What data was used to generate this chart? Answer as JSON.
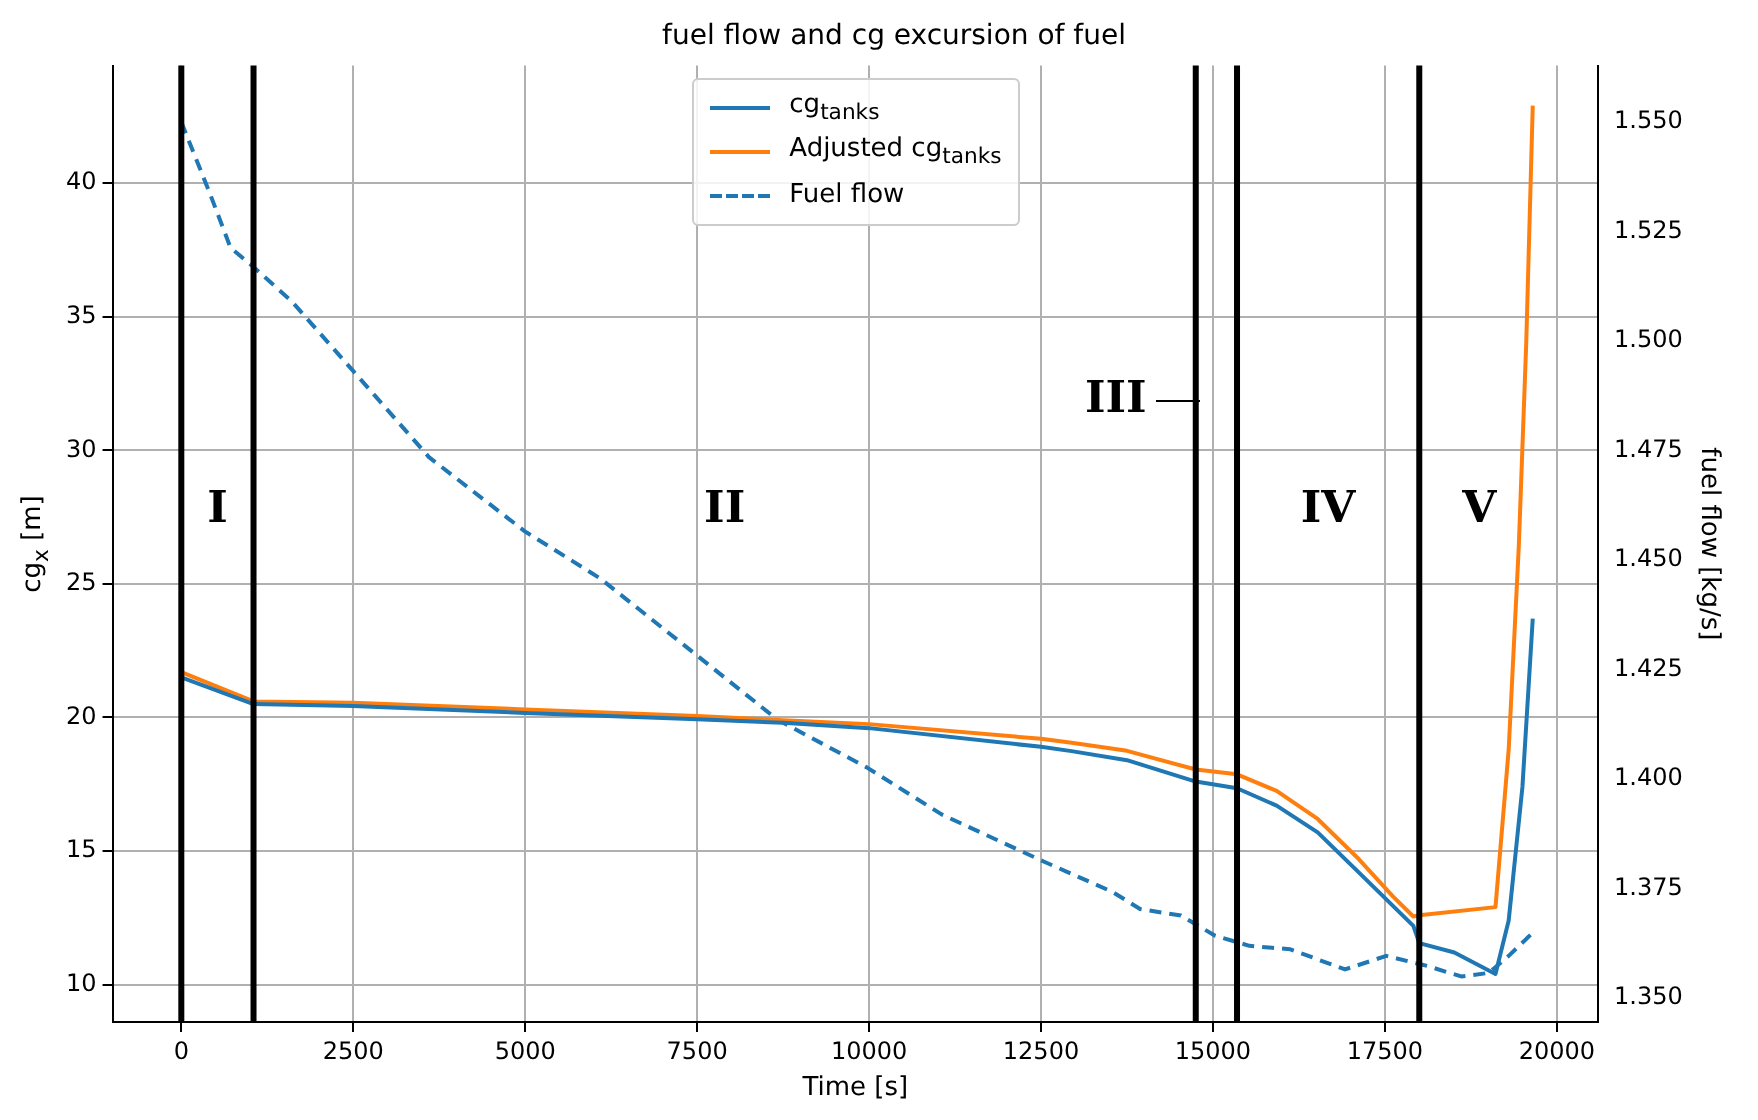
{
  "chart_data": {
    "type": "line",
    "title": "fuel flow and cg excursion of fuel",
    "xlabel": "Time [s]",
    "ylabel": "cg$_{x}$ [m]",
    "y2label": "fuel flow [kg/s]",
    "xlim": [
      -1000,
      20600
    ],
    "xticks": [
      0,
      2500,
      5000,
      7500,
      10000,
      12500,
      15000,
      17500,
      20000
    ],
    "ylim": [
      8.6,
      44.4
    ],
    "yticks": [
      10,
      15,
      20,
      25,
      30,
      35,
      40
    ],
    "y2lim": [
      1.3445,
      1.5629
    ],
    "y2ticks": [
      {
        "value": 1.35,
        "label": "1.350"
      },
      {
        "value": 1.375,
        "label": "1.375"
      },
      {
        "value": 1.4,
        "label": "1.400"
      },
      {
        "value": 1.425,
        "label": "1.425"
      },
      {
        "value": 1.45,
        "label": "1.450"
      },
      {
        "value": 1.475,
        "label": "1.475"
      },
      {
        "value": 1.5,
        "label": "1.500"
      },
      {
        "value": 1.525,
        "label": "1.525"
      },
      {
        "value": 1.55,
        "label": "1.550"
      }
    ],
    "grid": true,
    "legend": "top",
    "marker": "none",
    "series": [
      {
        "name": "cg$_{tanks}$",
        "color": "#1f77b4",
        "line_style": "solid",
        "x": [
          0,
          1050,
          2500,
          5000,
          7500,
          8750,
          10000,
          12500,
          12944,
          13750,
          14750,
          15350,
          15926,
          16523,
          17120,
          17914,
          18000,
          18510,
          19108,
          19300,
          19500,
          19650
        ],
        "values": [
          21.5,
          20.5,
          20.43,
          20.17,
          19.93,
          19.8,
          19.6,
          18.9,
          18.74,
          18.4,
          17.6,
          17.35,
          16.7,
          15.7,
          14.2,
          12.2,
          11.55,
          11.2,
          10.4,
          12.4,
          17.4,
          23.7
        ]
      },
      {
        "name": "Adjusted cg$_{tanks}$",
        "color": "#ff7f0e",
        "line_style": "solid",
        "x": [
          0,
          1050,
          2500,
          5000,
          7500,
          10000,
          12500,
          12944,
          13750,
          14750,
          15350,
          15926,
          16523,
          17120,
          17616,
          17914,
          18000,
          19108,
          19300,
          19447,
          19555,
          19650
        ],
        "values": [
          21.7,
          20.6,
          20.55,
          20.3,
          20.05,
          19.75,
          19.2,
          19.05,
          18.75,
          18.05,
          17.87,
          17.25,
          16.2,
          14.7,
          13.3,
          12.55,
          12.6,
          12.9,
          18.8,
          26.4,
          34,
          42.9
        ]
      },
      {
        "name": "Fuel flow",
        "color": "#1f77b4",
        "line_style": "dashed",
        "axis": "y2",
        "x": [
          0,
          418,
          716,
          1014,
          1610,
          2475,
          3600,
          4990,
          6090,
          7506,
          8670,
          9960,
          11055,
          12546,
          13540,
          13940,
          14535,
          15032,
          15530,
          16126,
          16920,
          17520,
          18115,
          18610,
          19007,
          19300,
          19650
        ],
        "values": [
          1.55,
          1.5336,
          1.5213,
          1.5174,
          1.509,
          1.4936,
          1.4735,
          1.4566,
          1.4458,
          1.4281,
          1.4135,
          1.4027,
          1.3919,
          1.3811,
          1.3742,
          1.3703,
          1.3688,
          1.3642,
          1.3619,
          1.3611,
          1.3565,
          1.3596,
          1.3573,
          1.3549,
          1.3557,
          1.3596,
          1.3649
        ]
      }
    ],
    "ref_lines": [
      {
        "axis": "x",
        "value": 0,
        "color": "#000000"
      },
      {
        "axis": "x",
        "value": 1050,
        "color": "#000000"
      },
      {
        "axis": "x",
        "value": 14750,
        "color": "#000000"
      },
      {
        "axis": "x",
        "value": 15350,
        "color": "#000000"
      },
      {
        "axis": "x",
        "value": 18000,
        "color": "#000000"
      }
    ],
    "annotations": [
      "I",
      "II",
      "III",
      "IV",
      "V"
    ]
  }
}
